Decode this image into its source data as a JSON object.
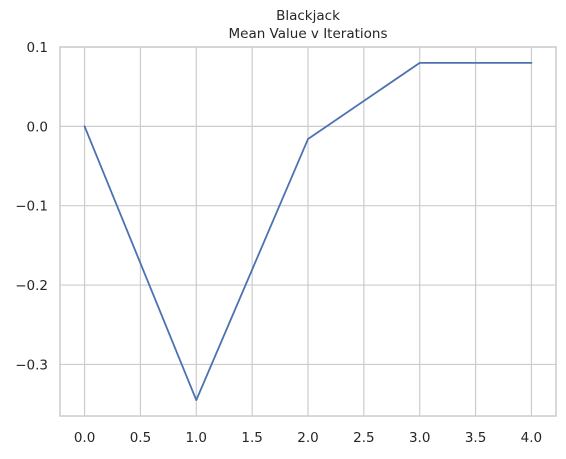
{
  "chart_data": {
    "type": "line",
    "title": "Blackjack",
    "subtitle": "Mean Value v Iterations",
    "xlabel": "",
    "ylabel": "",
    "x": [
      0,
      1,
      2,
      3,
      4
    ],
    "series": [
      {
        "values": [
          0.0,
          -0.345,
          -0.016,
          0.08,
          0.08
        ],
        "color": "#4c72b0"
      }
    ],
    "xlim": [
      -0.22,
      4.22
    ],
    "ylim": [
      -0.365,
      0.1
    ],
    "xticks": [
      0.0,
      0.5,
      1.0,
      1.5,
      2.0,
      2.5,
      3.0,
      3.5,
      4.0
    ],
    "xtick_labels": [
      "0.0",
      "0.5",
      "1.0",
      "1.5",
      "2.0",
      "2.5",
      "3.0",
      "3.5",
      "4.0"
    ],
    "yticks": [
      0.1,
      0.0,
      -0.1,
      -0.2,
      -0.3
    ],
    "ytick_labels": [
      "0.1",
      "0.0",
      "−0.1",
      "−0.2",
      "−0.3"
    ],
    "grid": true,
    "legend": "none",
    "style": {
      "grid_color": "#cccccc",
      "spine_color": "#cccccc",
      "text_color": "#262626",
      "background": "#ffffff"
    }
  }
}
